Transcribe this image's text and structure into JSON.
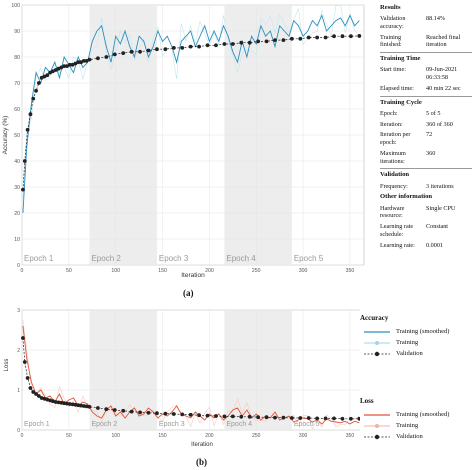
{
  "captions": {
    "a": "(a)",
    "b": "(b)"
  },
  "side_panel": {
    "results": {
      "heading": "Results",
      "rows": [
        {
          "key": "Validation accuracy:",
          "value": "88.14%"
        },
        {
          "key": "Training finished:",
          "value": "Reached final iteration"
        }
      ]
    },
    "training_time": {
      "heading": "Training Time",
      "rows": [
        {
          "key": "Start time:",
          "value": "09-Jun-2021 06:33:58"
        },
        {
          "key": "Elapsed time:",
          "value": "40 min 22 sec"
        }
      ]
    },
    "training_cycle": {
      "heading": "Training Cycle",
      "rows": [
        {
          "key": "Epoch:",
          "value": "5 of 5"
        },
        {
          "key": "Iteration:",
          "value": "360 of 360"
        },
        {
          "key": "Iteration per epoch:",
          "value": "72"
        },
        {
          "key": "Maximum iterations:",
          "value": "360"
        }
      ]
    },
    "validation": {
      "heading": "Validation",
      "rows": [
        {
          "key": "Frequency:",
          "value": "3 iterations"
        }
      ]
    },
    "other": {
      "heading": "Other information",
      "rows": [
        {
          "key": "Hardware resource:",
          "value": "Single CPU"
        },
        {
          "key": "Learning rate schedule:",
          "value": "Constant"
        },
        {
          "key": "Learning rate:",
          "value": "0.0001"
        }
      ]
    }
  },
  "legend_b": {
    "accuracy": {
      "title": "Accuracy",
      "items": [
        "Training (smoothed)",
        "Training",
        "Validation"
      ],
      "colors": [
        "#2a8fbd",
        "#9fd6e6",
        "#222222"
      ]
    },
    "loss": {
      "title": "Loss",
      "items": [
        "Training (smoothed)",
        "Training",
        "Validation"
      ],
      "colors": [
        "#e0543a",
        "#f2b1a3",
        "#222222"
      ]
    }
  },
  "chart_data": [
    {
      "type": "line",
      "xlabel": "Iteration",
      "ylabel": "Accuracy (%)",
      "xlim": [
        0,
        365
      ],
      "ylim": [
        0,
        100
      ],
      "xticks": [
        0,
        50,
        100,
        150,
        200,
        250,
        300,
        350
      ],
      "yticks": [
        0,
        10,
        20,
        30,
        40,
        50,
        60,
        70,
        80,
        90,
        100
      ],
      "epochs": [
        {
          "label": "Epoch 1",
          "start": 0,
          "end": 72,
          "shaded": false
        },
        {
          "label": "Epoch 2",
          "start": 72,
          "end": 144,
          "shaded": true
        },
        {
          "label": "Epoch 3",
          "start": 144,
          "end": 216,
          "shaded": false
        },
        {
          "label": "Epoch 4",
          "start": 216,
          "end": 288,
          "shaded": true
        },
        {
          "label": "Epoch 5",
          "start": 288,
          "end": 360,
          "shaded": false
        }
      ],
      "series": [
        {
          "name": "Training (smoothed)",
          "color": "#2a8fbd",
          "x": [
            1,
            5,
            10,
            15,
            20,
            25,
            30,
            35,
            40,
            45,
            50,
            55,
            60,
            65,
            70,
            75,
            80,
            85,
            90,
            95,
            100,
            105,
            110,
            115,
            120,
            125,
            130,
            135,
            140,
            145,
            150,
            155,
            160,
            165,
            170,
            175,
            180,
            185,
            190,
            195,
            200,
            205,
            210,
            215,
            220,
            225,
            230,
            235,
            240,
            245,
            250,
            255,
            260,
            265,
            270,
            275,
            280,
            285,
            290,
            295,
            300,
            305,
            310,
            315,
            320,
            325,
            330,
            335,
            340,
            345,
            350,
            355,
            360
          ],
          "y": [
            20,
            45,
            62,
            74,
            70,
            76,
            74,
            78,
            72,
            80,
            77,
            74,
            80,
            76,
            78,
            86,
            90,
            92,
            84,
            78,
            88,
            85,
            90,
            84,
            80,
            88,
            86,
            80,
            84,
            90,
            86,
            88,
            84,
            78,
            86,
            88,
            90,
            84,
            88,
            92,
            86,
            90,
            86,
            92,
            88,
            82,
            78,
            86,
            80,
            88,
            85,
            92,
            88,
            90,
            84,
            92,
            90,
            88,
            94,
            92,
            88,
            90,
            94,
            92,
            96,
            90,
            92,
            94,
            95,
            92,
            96,
            92,
            94
          ]
        },
        {
          "name": "Validation",
          "color": "#222222",
          "x": [
            1,
            3,
            6,
            9,
            12,
            15,
            18,
            21,
            24,
            27,
            30,
            33,
            36,
            39,
            42,
            45,
            48,
            51,
            54,
            57,
            60,
            63,
            66,
            69,
            72,
            81,
            90,
            99,
            108,
            117,
            126,
            135,
            144,
            153,
            162,
            171,
            180,
            189,
            198,
            207,
            216,
            225,
            234,
            243,
            252,
            261,
            270,
            279,
            288,
            297,
            306,
            315,
            324,
            333,
            342,
            351,
            360
          ],
          "y": [
            29,
            40,
            52,
            58,
            64,
            67,
            70,
            72,
            72.5,
            73,
            74,
            74.5,
            75,
            75.5,
            76,
            76.5,
            76.5,
            77,
            77,
            77.5,
            78,
            78,
            78.5,
            78.5,
            79,
            79.5,
            80,
            81,
            81.5,
            82,
            82,
            82.5,
            83,
            83,
            83.5,
            83.5,
            84,
            84,
            84.5,
            84.5,
            85,
            85,
            85.5,
            85.5,
            86,
            86,
            86.5,
            86.5,
            87,
            87,
            87.5,
            87.5,
            87.5,
            88,
            88,
            88,
            88.1
          ]
        }
      ]
    },
    {
      "type": "line",
      "xlabel": "Iteration",
      "ylabel": "Loss",
      "xlim": [
        0,
        365
      ],
      "ylim": [
        0,
        3
      ],
      "xticks": [
        0,
        50,
        100,
        150,
        200,
        250,
        300,
        350
      ],
      "yticks": [
        0,
        1,
        2,
        3
      ],
      "epochs": [
        {
          "label": "Epoch 1",
          "start": 0,
          "end": 72,
          "shaded": false
        },
        {
          "label": "Epoch 2",
          "start": 72,
          "end": 144,
          "shaded": true
        },
        {
          "label": "Epoch 3",
          "start": 144,
          "end": 216,
          "shaded": false
        },
        {
          "label": "Epoch 4",
          "start": 216,
          "end": 288,
          "shaded": true
        },
        {
          "label": "Epoch 5",
          "start": 288,
          "end": 360,
          "shaded": false
        }
      ],
      "series": [
        {
          "name": "Training (smoothed)",
          "color": "#e0543a",
          "x": [
            1,
            5,
            10,
            15,
            20,
            25,
            30,
            35,
            40,
            45,
            50,
            55,
            60,
            65,
            70,
            75,
            80,
            85,
            90,
            95,
            100,
            105,
            110,
            115,
            120,
            125,
            130,
            135,
            140,
            145,
            150,
            155,
            160,
            165,
            170,
            175,
            180,
            185,
            190,
            195,
            200,
            205,
            210,
            215,
            220,
            225,
            230,
            235,
            240,
            245,
            250,
            255,
            260,
            265,
            270,
            275,
            280,
            285,
            290,
            295,
            300,
            305,
            310,
            315,
            320,
            325,
            330,
            335,
            340,
            345,
            350,
            355,
            360
          ],
          "y": [
            2.6,
            1.8,
            1.2,
            0.9,
            1.0,
            0.8,
            0.85,
            0.7,
            0.9,
            0.65,
            0.75,
            0.8,
            0.6,
            0.7,
            0.65,
            0.45,
            0.35,
            0.3,
            0.5,
            0.6,
            0.35,
            0.45,
            0.3,
            0.45,
            0.55,
            0.35,
            0.4,
            0.55,
            0.45,
            0.3,
            0.4,
            0.35,
            0.45,
            0.6,
            0.4,
            0.35,
            0.3,
            0.45,
            0.35,
            0.25,
            0.4,
            0.3,
            0.4,
            0.25,
            0.35,
            0.5,
            0.55,
            0.35,
            0.5,
            0.3,
            0.4,
            0.25,
            0.35,
            0.3,
            0.45,
            0.25,
            0.3,
            0.35,
            0.2,
            0.25,
            0.3,
            0.28,
            0.2,
            0.25,
            0.15,
            0.28,
            0.22,
            0.2,
            0.18,
            0.22,
            0.15,
            0.22,
            0.18
          ]
        },
        {
          "name": "Validation",
          "color": "#222222",
          "x": [
            1,
            3,
            6,
            9,
            12,
            15,
            18,
            21,
            24,
            27,
            30,
            33,
            36,
            39,
            42,
            45,
            48,
            51,
            54,
            57,
            60,
            63,
            66,
            69,
            72,
            81,
            90,
            99,
            108,
            117,
            126,
            135,
            144,
            153,
            162,
            171,
            180,
            189,
            198,
            207,
            216,
            225,
            234,
            243,
            252,
            261,
            270,
            279,
            288,
            297,
            306,
            315,
            324,
            333,
            342,
            351,
            360
          ],
          "y": [
            2.3,
            1.7,
            1.3,
            1.05,
            0.95,
            0.9,
            0.85,
            0.8,
            0.78,
            0.76,
            0.74,
            0.72,
            0.7,
            0.69,
            0.68,
            0.67,
            0.66,
            0.65,
            0.64,
            0.63,
            0.62,
            0.61,
            0.6,
            0.59,
            0.58,
            0.55,
            0.52,
            0.5,
            0.48,
            0.46,
            0.44,
            0.43,
            0.42,
            0.41,
            0.4,
            0.39,
            0.38,
            0.37,
            0.36,
            0.35,
            0.34,
            0.34,
            0.33,
            0.33,
            0.32,
            0.32,
            0.31,
            0.31,
            0.3,
            0.3,
            0.3,
            0.29,
            0.29,
            0.29,
            0.28,
            0.28,
            0.28
          ]
        }
      ]
    }
  ]
}
